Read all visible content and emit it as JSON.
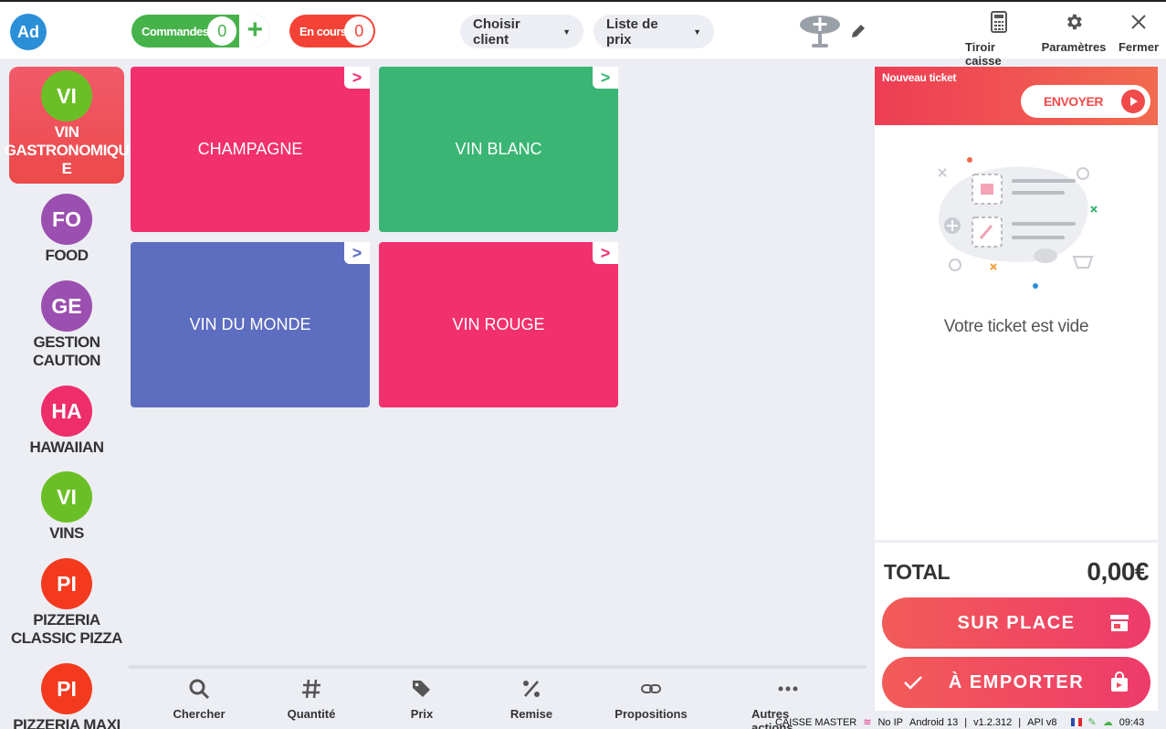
{
  "header": {
    "avatar": "Ad",
    "commandes_label": "Commandes",
    "commandes_count": "0",
    "encours_label": "En cours",
    "encours_count": "0",
    "client_dropdown": "Choisir client",
    "pricelist_dropdown": "Liste de prix",
    "actions": [
      {
        "label": "Tiroir caisse",
        "icon": "calculator-icon"
      },
      {
        "label": "Paramètres",
        "icon": "gear-icon"
      },
      {
        "label": "Fermer",
        "icon": "close-icon"
      }
    ]
  },
  "categories": [
    {
      "initials": "VI",
      "label": "VIN GASTRONOMIQU E",
      "color": "#6bbf26",
      "active": true
    },
    {
      "initials": "FO",
      "label": "FOOD",
      "color": "#9b4fb0"
    },
    {
      "initials": "GE",
      "label": "GESTION CAUTION",
      "color": "#9b4fb0"
    },
    {
      "initials": "HA",
      "label": "HAWAIIAN",
      "color": "#ee2d6b"
    },
    {
      "initials": "VI",
      "label": "VINS",
      "color": "#6bbf26"
    },
    {
      "initials": "PI",
      "label": "PIZZERIA CLASSIC PIZZA",
      "color": "#f33a1f"
    },
    {
      "initials": "PI",
      "label": "PIZZERIA MAXI",
      "color": "#f33a1f"
    }
  ],
  "tiles": [
    {
      "label": "CHAMPAGNE",
      "color": "#f2306e"
    },
    {
      "label": "VIN BLANC",
      "color": "#3ab574"
    },
    {
      "label": "VIN DU MONDE",
      "color": "#5d6dbf"
    },
    {
      "label": "VIN ROUGE",
      "color": "#f2306e"
    }
  ],
  "toolbar": [
    {
      "label": "Chercher",
      "icon": "search-icon"
    },
    {
      "label": "Quantité",
      "icon": "hash-icon"
    },
    {
      "label": "Prix",
      "icon": "tags-icon"
    },
    {
      "label": "Remise",
      "icon": "percent-icon"
    },
    {
      "label": "Propositions",
      "icon": "link-icon"
    },
    {
      "label": "Autres actions",
      "icon": "more-icon"
    }
  ],
  "ticket": {
    "title": "Nouveau ticket",
    "send_label": "ENVOYER",
    "empty_text": "Votre ticket est vide",
    "total_label": "TOTAL",
    "total_value": "0,00€",
    "dine_in_label": "SUR PLACE",
    "takeaway_label": "À EMPORTER"
  },
  "status": {
    "register": "CAISSE MASTER",
    "network": "No IP",
    "android": "Android 13",
    "version": "v1.2.312",
    "api": "API v8",
    "time": "09:43"
  }
}
